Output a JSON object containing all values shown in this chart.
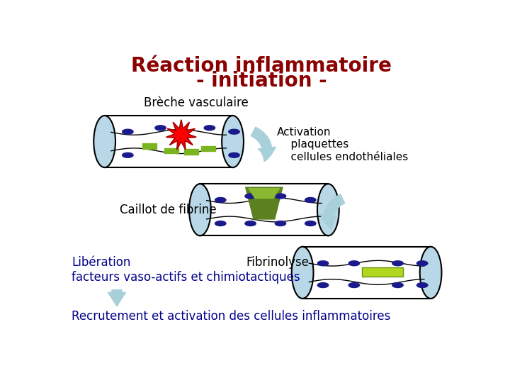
{
  "title_line1": "Réaction inflammatoire",
  "title_line2": "- initiation -",
  "title_color": "#8B0000",
  "title_fontsize": 20,
  "bg_color": "#ffffff",
  "text_color": "#000000",
  "blue_text_color": "#00008B",
  "vessel_fill": "#ffffff",
  "vessel_stroke": "#000000",
  "cap_fill": "#b8d8e8",
  "platelet_color": "#1a1a8c",
  "green_color": "#7ab520",
  "arrow_color": "#a8d0d8",
  "clot_color_top": "#5a8a10",
  "clot_color_bot": "#a8cc40",
  "fibrin_color": "#b0d820",
  "labels": {
    "breche": "Brèche vasculaire",
    "activation": "Activation\n    plaquettes\n    cellules endothéliales",
    "caillot": "Caillot de fibrine",
    "fibrinolyse": "Fibrinolyse",
    "liberation": "Libération\nfacteurs vaso-actifs et chimiotactiques",
    "recrutement": "Recrutement et activation des cellules inflammatoires"
  }
}
